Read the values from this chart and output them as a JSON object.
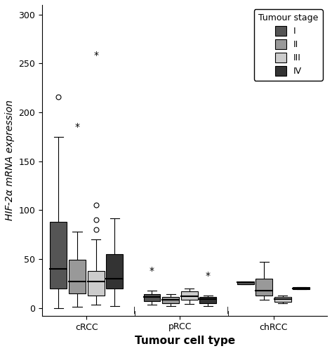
{
  "title": "",
  "xlabel": "Tumour cell type",
  "ylabel": "HIF-2α mRNA expression",
  "ylim": [
    -8,
    310
  ],
  "yticks": [
    0,
    50,
    100,
    150,
    200,
    250,
    300
  ],
  "xtick_labels": [
    "cRCC",
    "pRCC",
    "chRCC"
  ],
  "colors": {
    "I": "#555555",
    "II": "#999999",
    "III": "#cccccc",
    "IV": "#333333"
  },
  "legend_title": "Tumour stage",
  "groups": {
    "cRCC": {
      "I": {
        "q1": 20,
        "median": 40,
        "q3": 88,
        "whislo": 0,
        "whishi": 175,
        "fliers_circle": [
          216
        ],
        "fliers_star": []
      },
      "II": {
        "q1": 15,
        "median": 27,
        "q3": 49,
        "whislo": 1,
        "whishi": 78,
        "fliers_circle": [],
        "fliers_star": [
          185
        ]
      },
      "III": {
        "q1": 13,
        "median": 27,
        "q3": 38,
        "whislo": 3,
        "whishi": 70,
        "fliers_circle": [
          80,
          90,
          105
        ],
        "fliers_star": [
          258
        ]
      },
      "IV": {
        "q1": 20,
        "median": 30,
        "q3": 55,
        "whislo": 2,
        "whishi": 92,
        "fliers_circle": [],
        "fliers_star": []
      }
    },
    "pRCC": {
      "I": {
        "q1": 7,
        "median": 11,
        "q3": 14,
        "whislo": 3,
        "whishi": 18,
        "fliers_circle": [],
        "fliers_star": [
          38
        ]
      },
      "II": {
        "q1": 5,
        "median": 8,
        "q3": 11,
        "whislo": 2,
        "whishi": 14,
        "fliers_circle": [],
        "fliers_star": []
      },
      "III": {
        "q1": 8,
        "median": 12,
        "q3": 17,
        "whislo": 4,
        "whishi": 20,
        "fliers_circle": [],
        "fliers_star": []
      },
      "IV": {
        "q1": 5,
        "median": 9,
        "q3": 11,
        "whislo": 2,
        "whishi": 13,
        "fliers_circle": [],
        "fliers_star": [
          33
        ]
      }
    },
    "chRCC": {
      "I": {
        "q1": 24,
        "median": 26,
        "q3": 27,
        "whislo": 24,
        "whishi": 27,
        "fliers_circle": [],
        "fliers_star": []
      },
      "II": {
        "q1": 13,
        "median": 18,
        "q3": 30,
        "whislo": 8,
        "whishi": 47,
        "fliers_circle": [],
        "fliers_star": []
      },
      "III": {
        "q1": 6,
        "median": 9,
        "q3": 11,
        "whislo": 5,
        "whishi": 13,
        "fliers_circle": [],
        "fliers_star": []
      },
      "IV": {
        "q1": 19,
        "median": 20,
        "q3": 21,
        "whislo": 19,
        "whishi": 21,
        "fliers_circle": [],
        "fliers_star": []
      }
    }
  },
  "box_positions": {
    "cRCC": {
      "I": 0.6,
      "II": 1.4,
      "III": 2.2,
      "IV": 3.0
    },
    "pRCC": {
      "I": 4.6,
      "II": 5.4,
      "III": 6.2,
      "IV": 7.0
    },
    "chRCC": {
      "I": 8.6,
      "II": 9.4,
      "III": 10.2,
      "IV": 11.0
    }
  },
  "group_xtick_centers": [
    1.8,
    5.8,
    9.8
  ],
  "box_width": 0.72
}
